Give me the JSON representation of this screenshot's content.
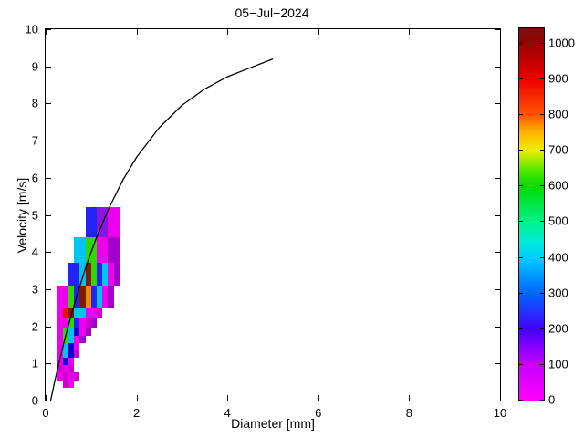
{
  "title": "05−Jul−2024",
  "chart_data": {
    "type": "heatmap",
    "title": "05−Jul−2024",
    "xlabel": "Diameter [mm]",
    "ylabel": "Velocity [m/s]",
    "xlim": [
      0,
      10
    ],
    "ylim": [
      0,
      10
    ],
    "xticks": [
      0,
      2,
      4,
      6,
      8,
      10
    ],
    "yticks": [
      0,
      1,
      2,
      3,
      4,
      5,
      6,
      7,
      8,
      9,
      10
    ],
    "grid": false,
    "legend": "none",
    "palette": {
      "mg": "#ee00ee",
      "mg2": "#cf00cf",
      "pu": "#a400cc",
      "vi": "#8816dd",
      "bl": "#2424f2",
      "bl2": "#0b00cc",
      "cy": "#00c4f0",
      "gr": "#2ed800",
      "or": "#f08c00",
      "rd": "#ea1200",
      "mr": "#7e1c00"
    },
    "cells": [
      [
        0.875,
        1.125,
        4.4,
        5.2,
        "bl"
      ],
      [
        1.125,
        1.375,
        4.4,
        5.2,
        "vi"
      ],
      [
        1.375,
        1.625,
        4.4,
        5.2,
        "mg"
      ],
      [
        0.625,
        0.875,
        3.7,
        4.4,
        "cy"
      ],
      [
        0.875,
        1.125,
        3.7,
        4.4,
        "gr"
      ],
      [
        1.125,
        1.375,
        3.7,
        4.4,
        "mg"
      ],
      [
        1.375,
        1.625,
        3.7,
        4.4,
        "pu"
      ],
      [
        0.5,
        0.75,
        3.1,
        3.7,
        "bl"
      ],
      [
        0.75,
        0.875,
        3.1,
        3.7,
        "cy"
      ],
      [
        0.875,
        1.0,
        3.1,
        3.7,
        "mr"
      ],
      [
        1.0,
        1.125,
        3.1,
        3.7,
        "gr"
      ],
      [
        1.125,
        1.25,
        3.1,
        3.7,
        "bl"
      ],
      [
        1.25,
        1.375,
        3.1,
        3.7,
        "cy"
      ],
      [
        1.375,
        1.5,
        3.1,
        3.7,
        "mg"
      ],
      [
        1.5,
        1.625,
        3.1,
        3.7,
        "pu"
      ],
      [
        0.25,
        0.5,
        2.5,
        3.1,
        "mg"
      ],
      [
        0.5,
        0.625,
        2.5,
        3.1,
        "gr"
      ],
      [
        0.625,
        0.75,
        2.5,
        3.1,
        "bl"
      ],
      [
        0.75,
        0.875,
        2.5,
        3.1,
        "mr"
      ],
      [
        0.875,
        1.0,
        2.5,
        3.1,
        "or"
      ],
      [
        1.0,
        1.125,
        2.5,
        3.1,
        "bl"
      ],
      [
        1.125,
        1.25,
        2.5,
        3.1,
        "cy"
      ],
      [
        1.25,
        1.375,
        2.5,
        3.1,
        "mg"
      ],
      [
        1.375,
        1.5,
        2.5,
        3.1,
        "pu"
      ],
      [
        0.25,
        0.375,
        2.2,
        2.5,
        "mg"
      ],
      [
        0.375,
        0.5,
        2.2,
        2.5,
        "rd"
      ],
      [
        0.5,
        0.625,
        2.2,
        2.5,
        "mr"
      ],
      [
        0.625,
        0.75,
        2.2,
        2.5,
        "cy"
      ],
      [
        0.75,
        0.875,
        2.2,
        2.5,
        "cy"
      ],
      [
        0.875,
        1.0,
        2.2,
        2.5,
        "mg"
      ],
      [
        1.0,
        1.125,
        2.2,
        2.5,
        "mg"
      ],
      [
        1.125,
        1.25,
        2.2,
        2.5,
        "mg2"
      ],
      [
        0.25,
        0.375,
        1.95,
        2.2,
        "mg"
      ],
      [
        0.375,
        0.5,
        1.95,
        2.2,
        "mg"
      ],
      [
        0.5,
        0.625,
        1.95,
        2.2,
        "gr"
      ],
      [
        0.625,
        0.75,
        1.95,
        2.2,
        "bl"
      ],
      [
        0.75,
        0.875,
        1.95,
        2.2,
        "mg"
      ],
      [
        0.875,
        1.0,
        1.95,
        2.2,
        "mg2"
      ],
      [
        1.0,
        1.125,
        1.95,
        2.2,
        "pu"
      ],
      [
        0.25,
        0.375,
        1.75,
        1.95,
        "mg"
      ],
      [
        0.375,
        0.5,
        1.75,
        1.95,
        "gr"
      ],
      [
        0.5,
        0.625,
        1.75,
        1.95,
        "cy"
      ],
      [
        0.625,
        0.75,
        1.75,
        1.95,
        "bl2"
      ],
      [
        0.75,
        0.875,
        1.75,
        1.95,
        "mg"
      ],
      [
        0.875,
        1.0,
        1.75,
        1.95,
        "pu"
      ],
      [
        0.25,
        0.375,
        1.55,
        1.75,
        "mg"
      ],
      [
        0.375,
        0.5,
        1.55,
        1.75,
        "gr"
      ],
      [
        0.5,
        0.625,
        1.55,
        1.75,
        "cy"
      ],
      [
        0.625,
        0.75,
        1.55,
        1.75,
        "mg"
      ],
      [
        0.75,
        0.875,
        1.55,
        1.75,
        "pu"
      ],
      [
        0.25,
        0.375,
        1.35,
        1.55,
        "mg"
      ],
      [
        0.375,
        0.5,
        1.35,
        1.55,
        "cy"
      ],
      [
        0.5,
        0.625,
        1.35,
        1.55,
        "bl2"
      ],
      [
        0.625,
        0.75,
        1.35,
        1.55,
        "mg"
      ],
      [
        0.25,
        0.375,
        1.15,
        1.35,
        "mg"
      ],
      [
        0.375,
        0.5,
        1.15,
        1.35,
        "cy"
      ],
      [
        0.5,
        0.625,
        1.15,
        1.35,
        "bl2"
      ],
      [
        0.625,
        0.75,
        1.15,
        1.35,
        "mg2"
      ],
      [
        0.25,
        0.375,
        0.95,
        1.15,
        "mg"
      ],
      [
        0.375,
        0.5,
        0.95,
        1.15,
        "bl2"
      ],
      [
        0.5,
        0.625,
        0.95,
        1.15,
        "mg"
      ],
      [
        0.25,
        0.375,
        0.75,
        0.95,
        "mg2"
      ],
      [
        0.375,
        0.5,
        0.75,
        0.95,
        "mg"
      ],
      [
        0.5,
        0.625,
        0.75,
        0.95,
        "mg2"
      ],
      [
        0.25,
        0.375,
        0.55,
        0.75,
        "mg"
      ],
      [
        0.375,
        0.5,
        0.55,
        0.75,
        "mg2"
      ],
      [
        0.5,
        0.625,
        0.55,
        0.75,
        "mg"
      ],
      [
        0.625,
        0.75,
        0.55,
        0.75,
        "mg2"
      ],
      [
        0.375,
        0.5,
        0.35,
        0.55,
        "mg2"
      ],
      [
        0.5,
        0.625,
        0.35,
        0.55,
        "mg"
      ]
    ],
    "curve": {
      "name": "raindrop terminal velocity curve",
      "color": "#000000",
      "points": [
        [
          0.11,
          0.0
        ],
        [
          0.2,
          0.52
        ],
        [
          0.3,
          1.05
        ],
        [
          0.4,
          1.55
        ],
        [
          0.5,
          2.02
        ],
        [
          0.7,
          2.88
        ],
        [
          0.9,
          3.65
        ],
        [
          1.1,
          4.33
        ],
        [
          1.4,
          5.2
        ],
        [
          1.7,
          5.94
        ],
        [
          2.0,
          6.55
        ],
        [
          2.5,
          7.35
        ],
        [
          3.0,
          7.95
        ],
        [
          3.5,
          8.39
        ],
        [
          4.0,
          8.72
        ],
        [
          4.5,
          8.96
        ],
        [
          5.0,
          9.2
        ]
      ]
    },
    "colorbar": {
      "min": 0,
      "max": 1043,
      "ticks": [
        0,
        100,
        200,
        300,
        400,
        500,
        600,
        700,
        800,
        900,
        1000
      ],
      "gradient_stops": [
        [
          0.0,
          "#ff00ff"
        ],
        [
          0.096,
          "#c800ff"
        ],
        [
          0.192,
          "#4400ff"
        ],
        [
          0.288,
          "#0066ff"
        ],
        [
          0.384,
          "#00ccff"
        ],
        [
          0.43,
          "#00eed8"
        ],
        [
          0.479,
          "#00f08c"
        ],
        [
          0.575,
          "#00dd00"
        ],
        [
          0.62,
          "#55e800"
        ],
        [
          0.671,
          "#eeee00"
        ],
        [
          0.72,
          "#ffb400"
        ],
        [
          0.767,
          "#ff5500"
        ],
        [
          0.863,
          "#ee0000"
        ],
        [
          0.959,
          "#9a0000"
        ],
        [
          1.0,
          "#791212"
        ]
      ]
    }
  }
}
